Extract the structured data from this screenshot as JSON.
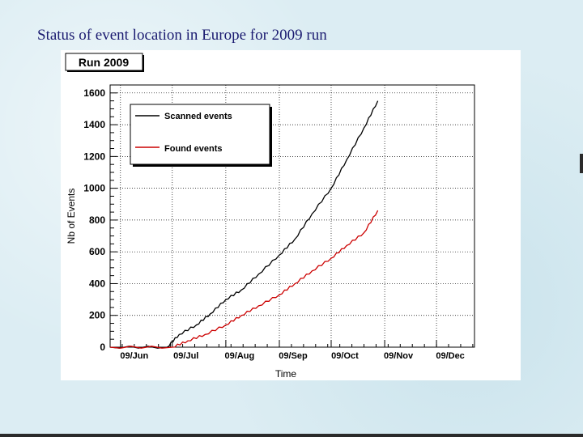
{
  "slide": {
    "title": "Status of event location in Europe for 2009 run"
  },
  "chart_data": {
    "type": "line",
    "title": "Run 2009",
    "xlabel": "Time",
    "ylabel": "Nb of Events",
    "x_ticks": [
      "09/Jun",
      "09/Jul",
      "09/Aug",
      "09/Sep",
      "09/Oct",
      "09/Nov",
      "09/Dec"
    ],
    "xlim": [
      "2009-05-26",
      "2009-12-23"
    ],
    "ylim": [
      0,
      1650
    ],
    "y_ticks": [
      0,
      200,
      400,
      600,
      800,
      1000,
      1200,
      1400,
      1600
    ],
    "grid": true,
    "legend": "top-left",
    "series": [
      {
        "name": "Scanned events",
        "color": "#000000",
        "x": [
          "2009-05-26",
          "2009-06-28",
          "2009-07-05",
          "2009-07-15",
          "2009-07-23",
          "2009-08-01",
          "2009-08-10",
          "2009-08-20",
          "2009-09-01",
          "2009-09-10",
          "2009-09-20",
          "2009-10-01",
          "2009-10-10",
          "2009-10-20",
          "2009-10-28"
        ],
        "y": [
          0,
          0,
          80,
          140,
          210,
          300,
          360,
          460,
          580,
          680,
          840,
          1000,
          1180,
          1380,
          1550
        ]
      },
      {
        "name": "Found events",
        "color": "#cc0000",
        "x": [
          "2009-05-26",
          "2009-07-01",
          "2009-07-10",
          "2009-07-20",
          "2009-08-01",
          "2009-08-10",
          "2009-08-20",
          "2009-09-01",
          "2009-09-10",
          "2009-09-20",
          "2009-10-01",
          "2009-10-10",
          "2009-10-20",
          "2009-10-28"
        ],
        "y": [
          0,
          0,
          40,
          80,
          140,
          200,
          260,
          330,
          400,
          480,
          560,
          640,
          720,
          860
        ]
      }
    ]
  }
}
